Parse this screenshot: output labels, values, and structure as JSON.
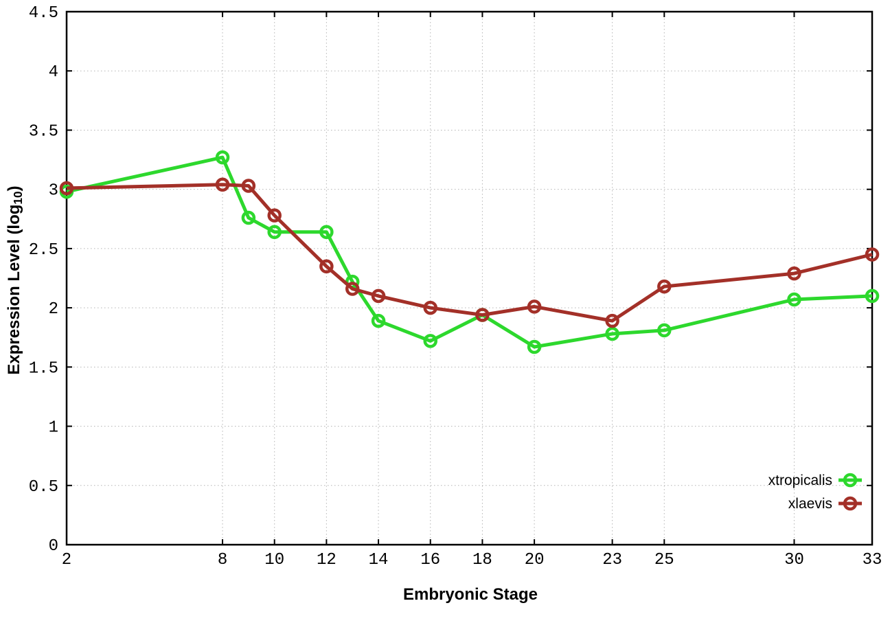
{
  "figure": {
    "background": "#ffffff",
    "x_axis_title": "Embryonic Stage",
    "y_axis_title": {
      "prefix": "Expression Level (log",
      "subscript": "10",
      "suffix": ")"
    }
  },
  "chart_data": {
    "type": "line",
    "title": "",
    "xlabel": "Embryonic Stage",
    "ylabel": "Expression Level (log10)",
    "x": [
      2,
      8,
      9,
      10,
      12,
      13,
      14,
      16,
      18,
      20,
      23,
      25,
      30,
      33
    ],
    "series": [
      {
        "name": "xtropicalis",
        "color": "#2dd82d",
        "marker": "open-circle",
        "values": [
          2.98,
          3.27,
          2.76,
          2.64,
          2.64,
          2.22,
          1.89,
          1.72,
          1.94,
          1.67,
          1.78,
          1.81,
          2.07,
          2.1
        ]
      },
      {
        "name": "xlaevis",
        "color": "#a33028",
        "marker": "open-circle",
        "values": [
          3.01,
          3.04,
          3.03,
          2.78,
          2.35,
          2.16,
          2.1,
          2.0,
          1.94,
          2.01,
          1.89,
          2.18,
          2.29,
          2.45
        ]
      }
    ],
    "xlim": [
      2,
      33
    ],
    "ylim": [
      0,
      4.5
    ],
    "x_ticks": [
      2,
      8,
      10,
      12,
      14,
      16,
      18,
      20,
      23,
      25,
      30,
      33
    ],
    "y_ticks": [
      0,
      0.5,
      1,
      1.5,
      2,
      2.5,
      3,
      3.5,
      4,
      4.5
    ],
    "grid": true,
    "grid_style": "dotted",
    "legend_position": "bottom-right",
    "legend_entries": [
      "xtropicalis",
      "xlaevis"
    ]
  },
  "colors": {
    "grid": "#b4b4b4",
    "border": "#000000",
    "tick_label": "#000000",
    "legend_text": "#000000"
  }
}
